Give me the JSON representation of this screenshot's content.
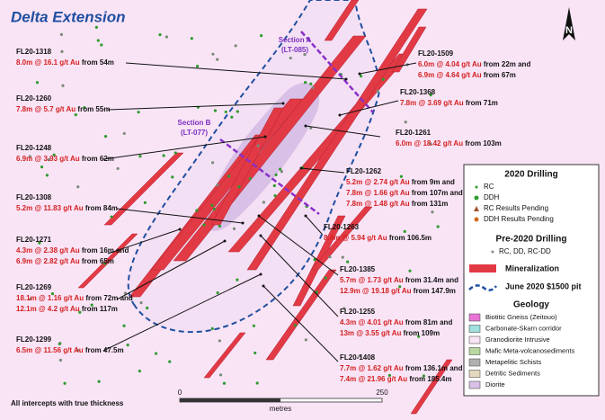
{
  "title": "Delta Extension",
  "sections": [
    {
      "name": "Section A",
      "line": "(LT-085)"
    },
    {
      "name": "Section B",
      "line": "(LT-077)"
    }
  ],
  "holes": [
    {
      "id": "FL20-1318",
      "intercepts": [
        {
          "grade": "8.0m @ 16.1 g/t Au",
          "depth": "from 54m"
        }
      ]
    },
    {
      "id": "FL20-1509",
      "intercepts": [
        {
          "grade": "6.0m @ 4.04 g/t Au",
          "depth": "from 22m and"
        },
        {
          "grade": "6.9m @ 4.64 g/t Au",
          "depth": "from 67m"
        }
      ]
    },
    {
      "id": "FL20-1368",
      "intercepts": [
        {
          "grade": "7.8m @ 3.69 g/t Au",
          "depth": "from 71m"
        }
      ]
    },
    {
      "id": "FL20-1260",
      "intercepts": [
        {
          "grade": "7.8m @ 5.7 g/t Au",
          "depth": "from 55m"
        }
      ]
    },
    {
      "id": "FL20-1261",
      "intercepts": [
        {
          "grade": "6.0m @ 18.42 g/t Au",
          "depth": "from 103m"
        }
      ]
    },
    {
      "id": "FL20-1248",
      "intercepts": [
        {
          "grade": "6.9m @ 3.93 g/t Au",
          "depth": "from 62m"
        }
      ]
    },
    {
      "id": "FL20-1262",
      "intercepts": [
        {
          "grade": "5.2m @ 2.74 g/t Au",
          "depth": "from 9m and"
        },
        {
          "grade": "7.8m @ 1.66 g/t Au",
          "depth": "from 107m and"
        },
        {
          "grade": "7.8m @ 1.48 g/t Au",
          "depth": "from 131m"
        }
      ]
    },
    {
      "id": "FL20-1308",
      "intercepts": [
        {
          "grade": "5.2m @ 11.83 g/t Au",
          "depth": "from 84m"
        }
      ]
    },
    {
      "id": "FL20-1263",
      "intercepts": [
        {
          "grade": "8.4m @ 5.94 g/t Au",
          "depth": "from 106.5m"
        }
      ]
    },
    {
      "id": "FL20-1271",
      "intercepts": [
        {
          "grade": "4.3m @ 2.38 g/t Au",
          "depth": "from 16m and"
        },
        {
          "grade": "6.9m @ 2.82 g/t Au",
          "depth": "from 65m"
        }
      ]
    },
    {
      "id": "FL20-1385",
      "intercepts": [
        {
          "grade": "5.7m @ 1.73 g/t Au",
          "depth": "from 31.4m and"
        },
        {
          "grade": "12.9m @ 19.18 g/t Au",
          "depth": "from 147.9m"
        }
      ]
    },
    {
      "id": "FL20-1269",
      "intercepts": [
        {
          "grade": "18.1m @ 1.16 g/t Au",
          "depth": "from 72m and"
        },
        {
          "grade": "12.1m @ 4.2 g/t Au",
          "depth": "from 117m"
        }
      ]
    },
    {
      "id": "FL20-1255",
      "intercepts": [
        {
          "grade": "4.3m @ 4.01 g/t Au",
          "depth": "from 81m and"
        },
        {
          "grade": "13m @ 3.55 g/t Au",
          "depth": "from 109m"
        }
      ]
    },
    {
      "id": "FL20-1299",
      "intercepts": [
        {
          "grade": "6.5m @ 11.56 g/t Au",
          "depth": "from 47.5m"
        }
      ]
    },
    {
      "id": "FL20-1408",
      "intercepts": [
        {
          "grade": "7.7m @ 1.62 g/t Au",
          "depth": "from 136.1m and"
        },
        {
          "grade": "7.4m @ 21.96 g/t Au",
          "depth": "from 185.4m"
        }
      ]
    }
  ],
  "note": "All intercepts with true thickness",
  "scale": {
    "start": "0",
    "end": "250",
    "unit": "metres"
  },
  "north": "N",
  "legend": {
    "drilling_title": "2020 Drilling",
    "drilling": [
      "RC",
      "DDH",
      "RC Results Pending",
      "DDH Results Pending"
    ],
    "pre_title": "Pre-2020 Drilling",
    "pre": "RC, DD, RC-DD",
    "mineralization": "Mineralization",
    "pit": "June 2020 $1500 pit",
    "geology_title": "Geology",
    "geology": [
      "Biotitic Gneiss (Zeitouo)",
      "Carbonate-Skarn corridor",
      "Granodiorite Intrusive",
      "Mafic Meta-volcanosediments",
      "Metapelitic Schists",
      "Detritic Sediments",
      "Diorite"
    ]
  }
}
